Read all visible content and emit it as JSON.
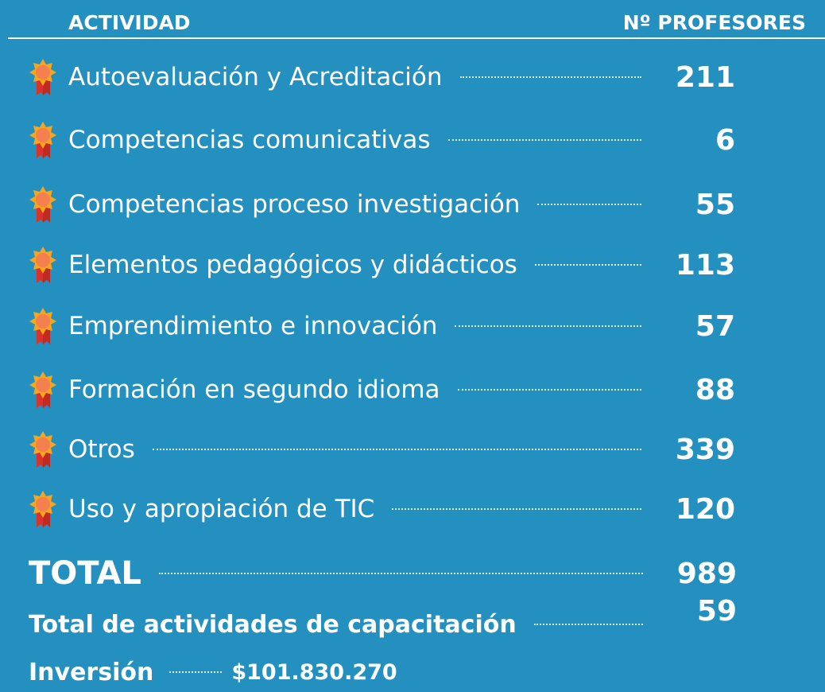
{
  "header": {
    "activity": "ACTIVIDAD",
    "count": "Nº PROFESORES"
  },
  "rows": [
    {
      "activity": "Autoevaluación y Acreditación",
      "count": 211
    },
    {
      "activity": "Competencias comunicativas",
      "count": 6
    },
    {
      "activity": "Competencias proceso investigación",
      "count": 55
    },
    {
      "activity": "Elementos pedagógicos y didácticos",
      "count": 113
    },
    {
      "activity": "Emprendimiento e innovación",
      "count": 57
    },
    {
      "activity": "Formación en segundo idioma",
      "count": 88
    },
    {
      "activity": "Otros",
      "count": 339
    },
    {
      "activity": "Uso y apropiación de TIC",
      "count": 120
    }
  ],
  "total": {
    "label": "TOTAL",
    "value": 989
  },
  "activities_total": {
    "label": "Total de actividades de capacitación",
    "value": 59
  },
  "investment": {
    "label": "Inversión",
    "value": "$101.830.270"
  }
}
